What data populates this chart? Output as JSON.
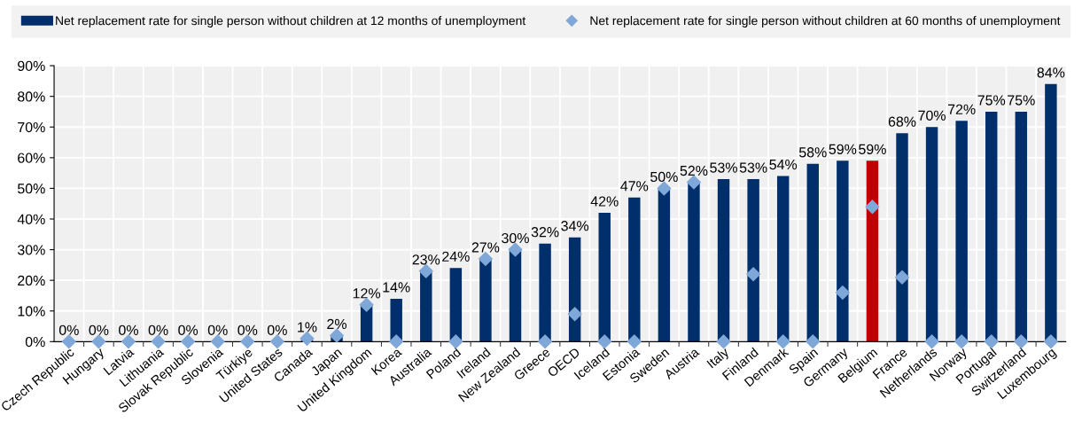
{
  "chart_data": {
    "type": "bar",
    "categories": [
      "Czech Republic",
      "Hungary",
      "Latvia",
      "Lithuania",
      "Slovak Republic",
      "Slovenia",
      "Türkiye",
      "United States",
      "Canada",
      "Japan",
      "United Kingdom",
      "Korea",
      "Australia",
      "Poland",
      "Ireland",
      "New Zealand",
      "Greece",
      "OECD",
      "Iceland",
      "Estonia",
      "Sweden",
      "Austria",
      "Italy",
      "Finland",
      "Denmark",
      "Spain",
      "Germany",
      "Belgium",
      "France",
      "Netherlands",
      "Norway",
      "Portugal",
      "Switzerland",
      "Luxembourg"
    ],
    "series": [
      {
        "name": "Net replacement rate for single person without children at 12 months of unemployment",
        "color": "#002f6c",
        "colors": [
          "#002f6c",
          "#002f6c",
          "#002f6c",
          "#002f6c",
          "#002f6c",
          "#002f6c",
          "#002f6c",
          "#002f6c",
          "#002f6c",
          "#002f6c",
          "#002f6c",
          "#002f6c",
          "#002f6c",
          "#002f6c",
          "#002f6c",
          "#002f6c",
          "#002f6c",
          "#002f6c",
          "#002f6c",
          "#002f6c",
          "#002f6c",
          "#002f6c",
          "#002f6c",
          "#002f6c",
          "#002f6c",
          "#002f6c",
          "#002f6c",
          "#c00000",
          "#002f6c",
          "#002f6c",
          "#002f6c",
          "#002f6c",
          "#002f6c",
          "#002f6c"
        ],
        "values": [
          0,
          0,
          0,
          0,
          0,
          0,
          0,
          0,
          1,
          2,
          12,
          14,
          23,
          24,
          27,
          30,
          32,
          34,
          42,
          47,
          50,
          52,
          53,
          53,
          54,
          58,
          59,
          59,
          68,
          70,
          72,
          75,
          75,
          84
        ],
        "value_labels": [
          "0%",
          "0%",
          "0%",
          "0%",
          "0%",
          "0%",
          "0%",
          "0%",
          "1%",
          "2%",
          "12%",
          "14%",
          "23%",
          "24%",
          "27%",
          "30%",
          "32%",
          "34%",
          "42%",
          "47%",
          "50%",
          "52%",
          "53%",
          "53%",
          "54%",
          "58%",
          "59%",
          "59%",
          "68%",
          "70%",
          "72%",
          "75%",
          "75%",
          "84%"
        ]
      },
      {
        "name": "Net replacement rate for single person without children at 60 months of unemployment",
        "type": "scatter",
        "color": "#7fa8d9",
        "marker": "diamond",
        "values": [
          0,
          0,
          0,
          0,
          0,
          0,
          0,
          0,
          1,
          2,
          12,
          0,
          23,
          0,
          27,
          30,
          0,
          9,
          0,
          0,
          50,
          52,
          0,
          22,
          0,
          0,
          16,
          44,
          21,
          0,
          0,
          0,
          0,
          0
        ]
      }
    ],
    "ylim": [
      0,
      90
    ],
    "yticks": [
      {
        "value": 0,
        "label": "0%"
      },
      {
        "value": 10,
        "label": "10%"
      },
      {
        "value": 20,
        "label": "20%"
      },
      {
        "value": 30,
        "label": "30%"
      },
      {
        "value": 40,
        "label": "40%"
      },
      {
        "value": 50,
        "label": "50%"
      },
      {
        "value": 60,
        "label": "60%"
      },
      {
        "value": 70,
        "label": "70%"
      },
      {
        "value": 80,
        "label": "80%"
      },
      {
        "value": 90,
        "label": "90%"
      }
    ],
    "grid": true,
    "legend": "top"
  }
}
